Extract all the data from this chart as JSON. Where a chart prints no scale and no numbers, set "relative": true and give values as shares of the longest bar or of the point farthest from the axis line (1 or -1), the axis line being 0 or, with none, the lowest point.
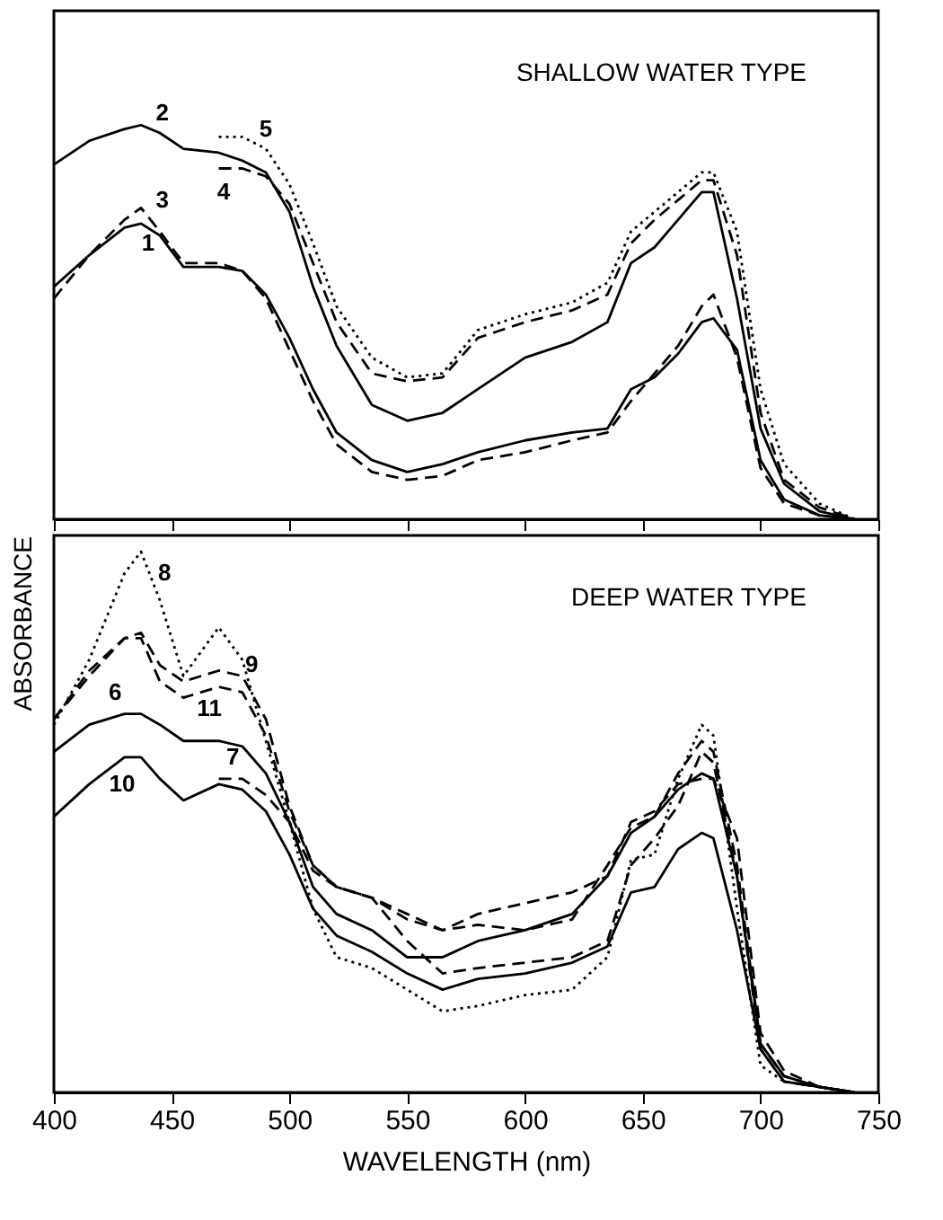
{
  "chart_data": [
    {
      "type": "line",
      "title": "SHALLOW WATER TYPE",
      "relative": true,
      "tick_labels": false,
      "xlim": [
        400,
        750
      ],
      "xticks": [
        400,
        450,
        500,
        550,
        600,
        650,
        700,
        750
      ],
      "x": [
        400,
        415,
        430,
        437,
        445,
        455,
        470,
        480,
        490,
        500,
        510,
        520,
        535,
        550,
        565,
        580,
        600,
        620,
        635,
        645,
        655,
        665,
        675,
        680,
        690,
        700,
        710,
        725,
        740
      ],
      "series": [
        {
          "name": "1",
          "color": "#000000",
          "line_style": "solid",
          "values": [
            0.59,
            0.67,
            0.74,
            0.75,
            0.72,
            0.64,
            0.64,
            0.63,
            0.57,
            0.46,
            0.33,
            0.22,
            0.15,
            0.12,
            0.14,
            0.17,
            0.2,
            0.22,
            0.23,
            0.33,
            0.36,
            0.42,
            0.5,
            0.51,
            0.43,
            0.15,
            0.05,
            0.01,
            0
          ]
        },
        {
          "name": "2",
          "color": "#000000",
          "line_style": "solid",
          "values": [
            0.9,
            0.96,
            0.99,
            1.0,
            0.98,
            0.94,
            0.93,
            0.91,
            0.88,
            0.78,
            0.59,
            0.44,
            0.29,
            0.25,
            0.27,
            0.33,
            0.41,
            0.45,
            0.5,
            0.65,
            0.69,
            0.76,
            0.83,
            0.83,
            0.56,
            0.23,
            0.09,
            0.02,
            0
          ]
        },
        {
          "name": "3",
          "color": "#000000",
          "line_style": "dashed",
          "values": [
            0.56,
            0.67,
            0.76,
            0.79,
            0.73,
            0.65,
            0.65,
            0.63,
            0.56,
            0.43,
            0.3,
            0.19,
            0.12,
            0.1,
            0.11,
            0.15,
            0.17,
            0.2,
            0.22,
            0.3,
            0.37,
            0.44,
            0.54,
            0.57,
            0.41,
            0.13,
            0.04,
            0.01,
            0
          ]
        },
        {
          "name": "4",
          "color": "#000000",
          "line_style": "dashed",
          "values": [
            null,
            null,
            null,
            null,
            null,
            null,
            0.89,
            0.89,
            0.87,
            0.8,
            0.65,
            0.5,
            0.37,
            0.35,
            0.36,
            0.46,
            0.5,
            0.53,
            0.57,
            0.7,
            0.76,
            0.81,
            0.86,
            0.86,
            0.67,
            0.27,
            0.1,
            0.03,
            0
          ]
        },
        {
          "name": "5",
          "color": "#000000",
          "line_style": "dotted",
          "values": [
            null,
            null,
            null,
            null,
            null,
            null,
            0.97,
            0.97,
            0.94,
            0.85,
            0.7,
            0.54,
            0.41,
            0.36,
            0.37,
            0.48,
            0.52,
            0.55,
            0.6,
            0.73,
            0.78,
            0.83,
            0.88,
            0.88,
            0.73,
            0.33,
            0.14,
            0.04,
            0
          ]
        }
      ]
    },
    {
      "type": "line",
      "title": "DEEP WATER TYPE",
      "relative": true,
      "tick_labels": "x",
      "xlabel": "WAVELENGTH (nm)",
      "ylabel": "ABSORBANCE",
      "xlim": [
        400,
        750
      ],
      "xticks": [
        400,
        450,
        500,
        550,
        600,
        650,
        700,
        750
      ],
      "x": [
        400,
        415,
        430,
        437,
        445,
        455,
        470,
        480,
        490,
        500,
        510,
        520,
        535,
        550,
        565,
        580,
        600,
        620,
        635,
        645,
        655,
        665,
        675,
        680,
        690,
        700,
        710,
        725,
        740
      ],
      "series": [
        {
          "name": "6",
          "color": "#000000",
          "line_style": "solid",
          "values": [
            0.63,
            0.68,
            0.7,
            0.7,
            0.68,
            0.65,
            0.65,
            0.64,
            0.59,
            0.5,
            0.38,
            0.33,
            0.3,
            0.25,
            0.25,
            0.28,
            0.3,
            0.33,
            0.4,
            0.48,
            0.51,
            0.56,
            0.59,
            0.58,
            0.4,
            0.09,
            0.03,
            0.01,
            0
          ]
        },
        {
          "name": "7",
          "color": "#000000",
          "line_style": "dashed",
          "values": [
            null,
            null,
            null,
            null,
            null,
            null,
            0.58,
            0.58,
            0.55,
            0.5,
            0.41,
            0.38,
            0.36,
            0.32,
            0.3,
            0.33,
            0.35,
            0.37,
            0.4,
            0.5,
            0.52,
            0.57,
            0.58,
            0.58,
            0.47,
            0.11,
            0.04,
            0.01,
            0
          ]
        },
        {
          "name": "8",
          "color": "#000000",
          "line_style": "dotted",
          "values": [
            0.68,
            0.8,
            0.96,
            1.0,
            0.91,
            0.77,
            0.86,
            0.8,
            0.65,
            0.5,
            0.34,
            0.25,
            0.23,
            0.19,
            0.15,
            0.16,
            0.18,
            0.19,
            0.25,
            0.43,
            0.44,
            0.58,
            0.68,
            0.66,
            0.34,
            0.05,
            0.02,
            0.01,
            0
          ]
        },
        {
          "name": "9",
          "color": "#000000",
          "line_style": "dashed",
          "values": [
            0.69,
            0.78,
            0.84,
            0.85,
            0.79,
            0.76,
            0.78,
            0.77,
            0.69,
            0.53,
            0.42,
            0.38,
            0.36,
            0.33,
            0.3,
            0.31,
            0.3,
            0.32,
            0.42,
            0.49,
            0.51,
            0.59,
            0.65,
            0.63,
            0.42,
            0.09,
            0.03,
            0.01,
            0
          ]
        },
        {
          "name": "10",
          "color": "#000000",
          "line_style": "solid",
          "values": [
            0.51,
            0.57,
            0.62,
            0.62,
            0.58,
            0.54,
            0.57,
            0.56,
            0.52,
            0.44,
            0.34,
            0.29,
            0.26,
            0.22,
            0.19,
            0.21,
            0.22,
            0.24,
            0.27,
            0.37,
            0.38,
            0.45,
            0.48,
            0.47,
            0.3,
            0.08,
            0.02,
            0.01,
            0
          ]
        },
        {
          "name": "11",
          "color": "#000000",
          "line_style": "dashed",
          "values": [
            0.69,
            0.77,
            0.84,
            0.84,
            0.76,
            0.73,
            0.75,
            0.74,
            0.66,
            0.52,
            0.42,
            0.38,
            0.36,
            0.28,
            0.22,
            0.23,
            0.24,
            0.25,
            0.28,
            0.42,
            0.47,
            0.53,
            0.63,
            0.61,
            0.4,
            0.08,
            0.02,
            0.01,
            0
          ]
        }
      ]
    }
  ]
}
